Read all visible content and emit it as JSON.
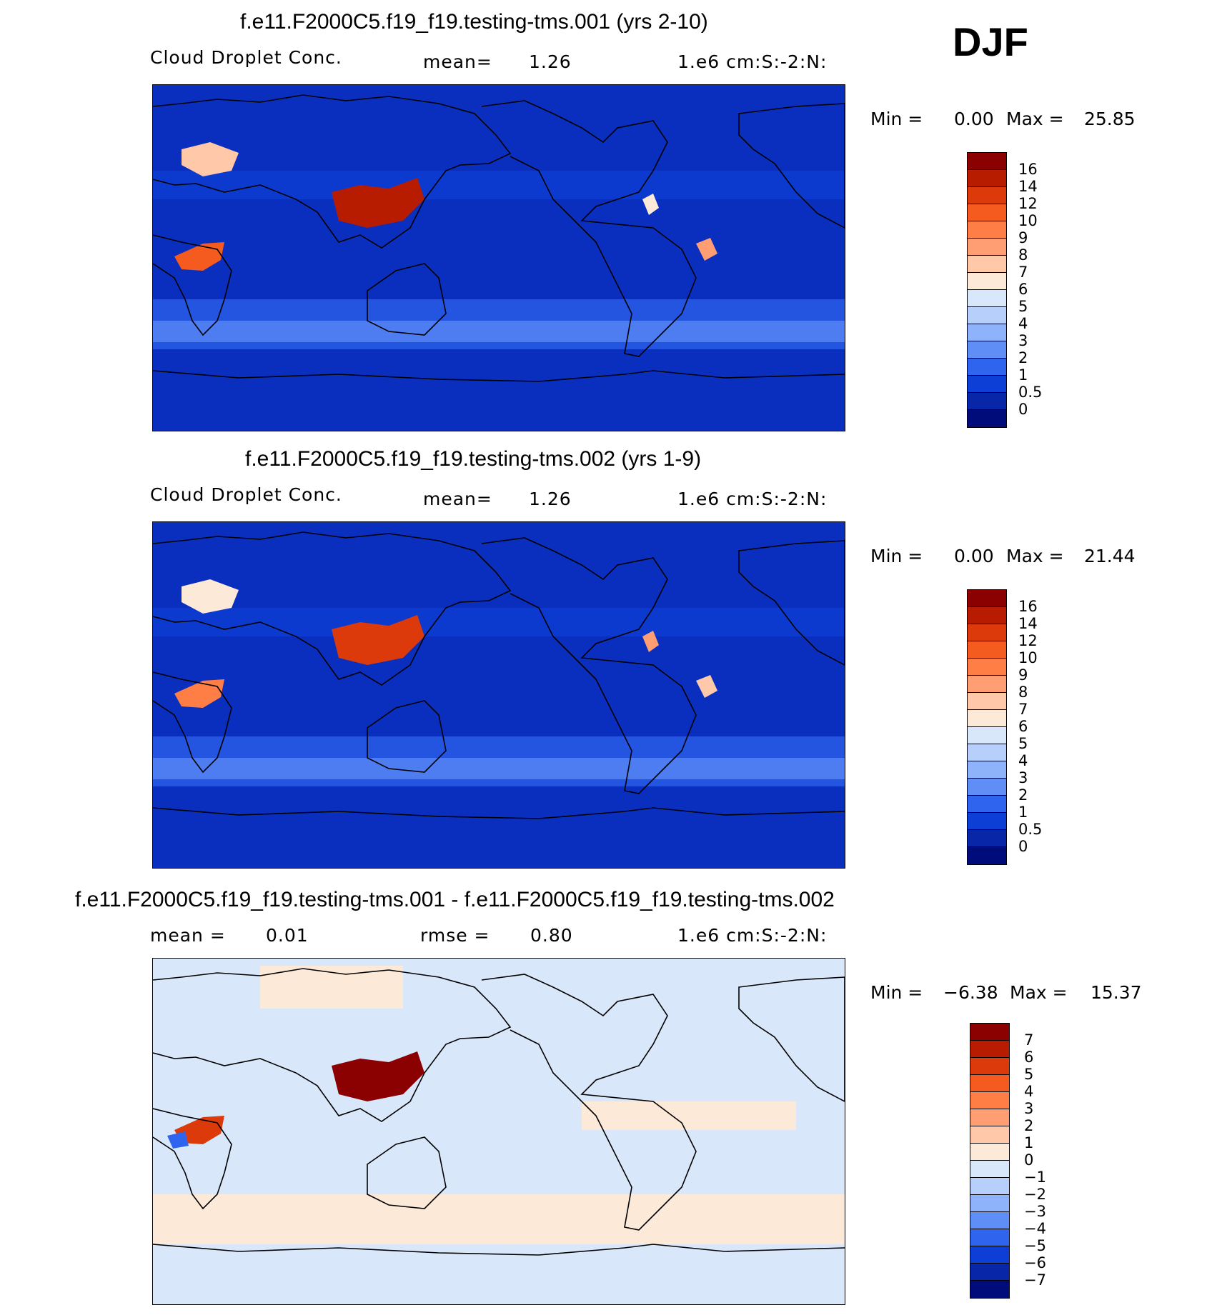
{
  "season": "DJF",
  "panels": [
    {
      "title": "f.e11.F2000C5.f19_f19.testing-tms.001 (yrs 2-10)",
      "left_label": "Cloud Droplet Conc.",
      "stat_label": "mean=",
      "stat_value": "1.26",
      "units": "1.e6 cm:S:-2:N:",
      "min_label": "Min =",
      "min_value": "0.00",
      "max_label": "Max =",
      "max_value": "25.85",
      "colorbar_labels": [
        "16",
        "14",
        "12",
        "10",
        "9",
        "8",
        "7",
        "6",
        "5",
        "4",
        "3",
        "2",
        "1",
        "0.5",
        "0"
      ],
      "background_color": "#0a2fbf",
      "colors": [
        "#8b0000",
        "#b81c00",
        "#dc3a0a",
        "#f55a1e",
        "#ff7e46",
        "#ff9e73",
        "#ffc8a8",
        "#fde9d8",
        "#d9e7fb",
        "#b7d0fb",
        "#8fb3fa",
        "#5f8ff6",
        "#2f65ee",
        "#0d3fd6",
        "#0726a8",
        "#000c7a"
      ],
      "hotspots": [
        {
          "name": "east-asia-hotspot",
          "color": "#b81c00",
          "region": "east-asia"
        },
        {
          "name": "central-africa-hotspot",
          "color": "#f55a1e",
          "region": "central-africa"
        },
        {
          "name": "europe-hotspot",
          "color": "#ffc8a8",
          "region": "europe"
        },
        {
          "name": "central-america-hotspot",
          "color": "#fde9d8",
          "region": "central-america"
        },
        {
          "name": "south-america-hotspot",
          "color": "#ff9e73",
          "region": "south-america"
        }
      ]
    },
    {
      "title": "f.e11.F2000C5.f19_f19.testing-tms.002 (yrs 1-9)",
      "left_label": "Cloud Droplet Conc.",
      "stat_label": "mean=",
      "stat_value": "1.26",
      "units": "1.e6 cm:S:-2:N:",
      "min_label": "Min =",
      "min_value": "0.00",
      "max_label": "Max =",
      "max_value": "21.44",
      "colorbar_labels": [
        "16",
        "14",
        "12",
        "10",
        "9",
        "8",
        "7",
        "6",
        "5",
        "4",
        "3",
        "2",
        "1",
        "0.5",
        "0"
      ],
      "background_color": "#0a2fbf",
      "colors": [
        "#8b0000",
        "#b81c00",
        "#dc3a0a",
        "#f55a1e",
        "#ff7e46",
        "#ff9e73",
        "#ffc8a8",
        "#fde9d8",
        "#d9e7fb",
        "#b7d0fb",
        "#8fb3fa",
        "#5f8ff6",
        "#2f65ee",
        "#0d3fd6",
        "#0726a8",
        "#000c7a"
      ],
      "hotspots": [
        {
          "name": "east-asia-hotspot",
          "color": "#dc3a0a",
          "region": "east-asia"
        },
        {
          "name": "central-africa-hotspot",
          "color": "#ff7e46",
          "region": "central-africa"
        },
        {
          "name": "europe-hotspot",
          "color": "#fde9d8",
          "region": "europe"
        },
        {
          "name": "central-america-hotspot",
          "color": "#ff9e73",
          "region": "central-america"
        },
        {
          "name": "south-america-hotspot",
          "color": "#ffc8a8",
          "region": "south-america"
        }
      ]
    },
    {
      "title": "f.e11.F2000C5.f19_f19.testing-tms.001 - f.e11.F2000C5.f19_f19.testing-tms.002",
      "left_label": "mean =",
      "left_value": "0.01",
      "stat_label": "rmse =",
      "stat_value": "0.80",
      "units": "1.e6 cm:S:-2:N:",
      "min_label": "Min =",
      "min_value": "−6.38",
      "max_label": "Max =",
      "max_value": "15.37",
      "colorbar_labels": [
        "7",
        "6",
        "5",
        "4",
        "3",
        "2",
        "1",
        "0",
        "−1",
        "−2",
        "−3",
        "−4",
        "−5",
        "−6",
        "−7"
      ],
      "background_color": "#d9e7fb",
      "colors": [
        "#8b0000",
        "#b81c00",
        "#dc3a0a",
        "#f55a1e",
        "#ff7e46",
        "#ff9e73",
        "#ffc8a8",
        "#fde9d8",
        "#d9e7fb",
        "#b7d0fb",
        "#8fb3fa",
        "#5f8ff6",
        "#2f65ee",
        "#0d3fd6",
        "#0726a8",
        "#000c7a"
      ],
      "hotspots": [
        {
          "name": "east-asia-hotspot",
          "color": "#8b0000",
          "region": "east-asia"
        },
        {
          "name": "central-africa-hotspot",
          "color": "#dc3a0a",
          "region": "central-africa"
        },
        {
          "name": "west-africa-negative",
          "color": "#2f65ee",
          "region": "west-africa"
        }
      ]
    }
  ]
}
